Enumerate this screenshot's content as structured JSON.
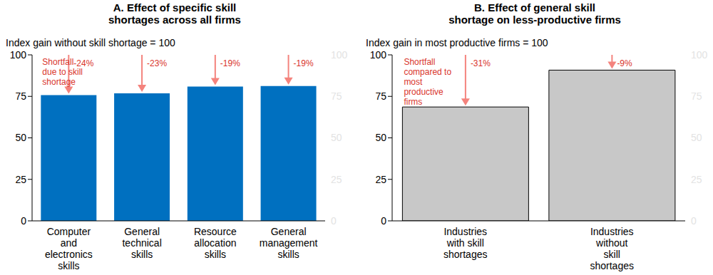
{
  "chart_data": [
    {
      "type": "bar",
      "title": "A. Effect of specific skill shortages across all firms",
      "subtitle": "Index gain without skill shortage = 100",
      "categories": [
        "Computer and electronics skills",
        "General technical skills",
        "Resource allocation skills",
        "General management skills"
      ],
      "values": [
        75.8,
        76.8,
        80.9,
        81.2
      ],
      "color": "#0070c0",
      "ylim": [
        0,
        100
      ],
      "yticks": [
        0,
        25,
        50,
        75,
        100
      ],
      "annotations": {
        "note": "Shortfall due to skill shortage",
        "labels": [
          "-24%",
          "-23%",
          "-19%",
          "-19%"
        ]
      }
    },
    {
      "type": "bar",
      "title": "B. Effect of general skill shortage on less-productive firms",
      "subtitle": "Index gain in most productive firms = 100",
      "categories": [
        "Industries with skill shortages",
        "Industries without skill shortages"
      ],
      "values": [
        68.6,
        90.8
      ],
      "color": "#c8c8c8",
      "ylim": [
        0,
        100
      ],
      "yticks": [
        0,
        25,
        50,
        75,
        100
      ],
      "annotations": {
        "note": "Shortfall compared to most productive firms",
        "labels": [
          "-31%",
          "-9%"
        ]
      }
    }
  ]
}
